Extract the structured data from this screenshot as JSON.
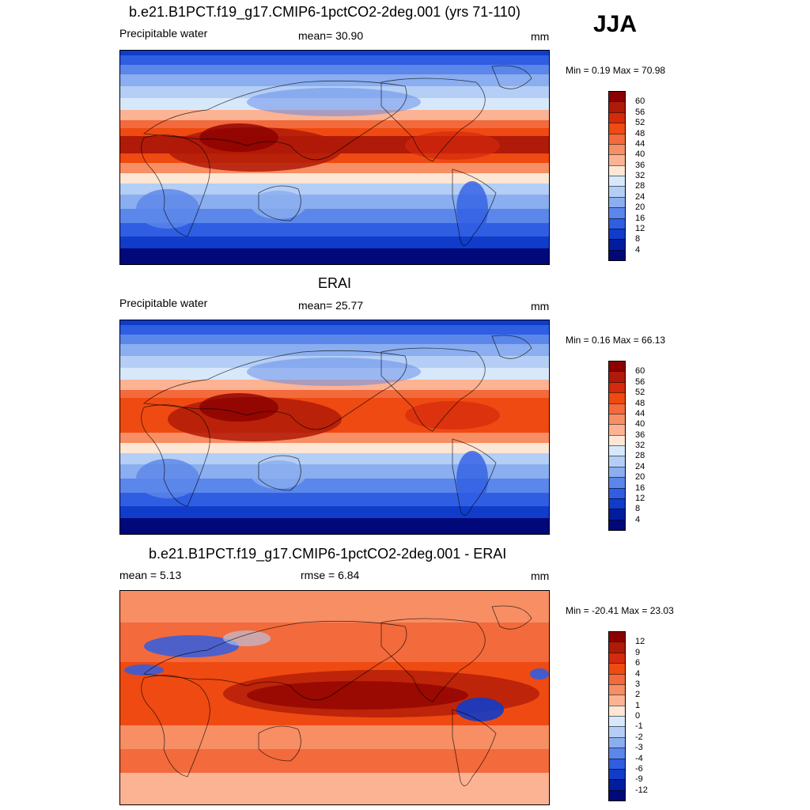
{
  "season": "JJA",
  "panels": [
    {
      "title": "b.e21.B1PCT.f19_g17.CMIP6-1pctCO2-2deg.001 (yrs 71-110)",
      "left_label": "Precipitable water",
      "center_label": "mean=  30.90",
      "units": "mm",
      "minmax": "Min =   0.19 Max =  70.98",
      "colorbar": {
        "labels": [
          "60",
          "56",
          "52",
          "48",
          "44",
          "40",
          "36",
          "32",
          "28",
          "24",
          "20",
          "16",
          "12",
          "8",
          "4"
        ],
        "colors": [
          "#8b0000",
          "#b01a08",
          "#d42a0d",
          "#ef4a12",
          "#f36a3c",
          "#f78e64",
          "#fbb393",
          "#fde6d3",
          "#d8e8fb",
          "#b4cef5",
          "#8aaeef",
          "#5b86ea",
          "#2f5ee3",
          "#103cc9",
          "#021c9e",
          "#01087a"
        ]
      },
      "map_type": "pw_model"
    },
    {
      "title": "ERAI",
      "left_label": "Precipitable water",
      "center_label": "mean=  25.77",
      "units": "mm",
      "minmax": "Min =   0.16 Max =  66.13",
      "colorbar": {
        "labels": [
          "60",
          "56",
          "52",
          "48",
          "44",
          "40",
          "36",
          "32",
          "28",
          "24",
          "20",
          "16",
          "12",
          "8",
          "4"
        ],
        "colors": [
          "#8b0000",
          "#b01a08",
          "#d42a0d",
          "#ef4a12",
          "#f36a3c",
          "#f78e64",
          "#fbb393",
          "#fde6d3",
          "#d8e8fb",
          "#b4cef5",
          "#8aaeef",
          "#5b86ea",
          "#2f5ee3",
          "#103cc9",
          "#021c9e",
          "#01087a"
        ]
      },
      "map_type": "pw_obs"
    },
    {
      "title": "b.e21.B1PCT.f19_g17.CMIP6-1pctCO2-2deg.001 - ERAI",
      "left_label": "mean =   5.13",
      "center_label": "rmse =   6.84",
      "units": "mm",
      "minmax": "Min = -20.41 Max =  23.03",
      "colorbar": {
        "labels": [
          "12",
          "9",
          "6",
          "4",
          "3",
          "2",
          "1",
          "0",
          "-1",
          "-2",
          "-3",
          "-4",
          "-6",
          "-9",
          "-12"
        ],
        "colors": [
          "#8b0000",
          "#b01a08",
          "#d42a0d",
          "#ef4a12",
          "#f36a3c",
          "#f78e64",
          "#fbb393",
          "#fde6d3",
          "#d8e8fb",
          "#b4cef5",
          "#8aaeef",
          "#5b86ea",
          "#2f5ee3",
          "#103cc9",
          "#021c9e",
          "#01087a"
        ]
      },
      "map_type": "diff"
    }
  ]
}
